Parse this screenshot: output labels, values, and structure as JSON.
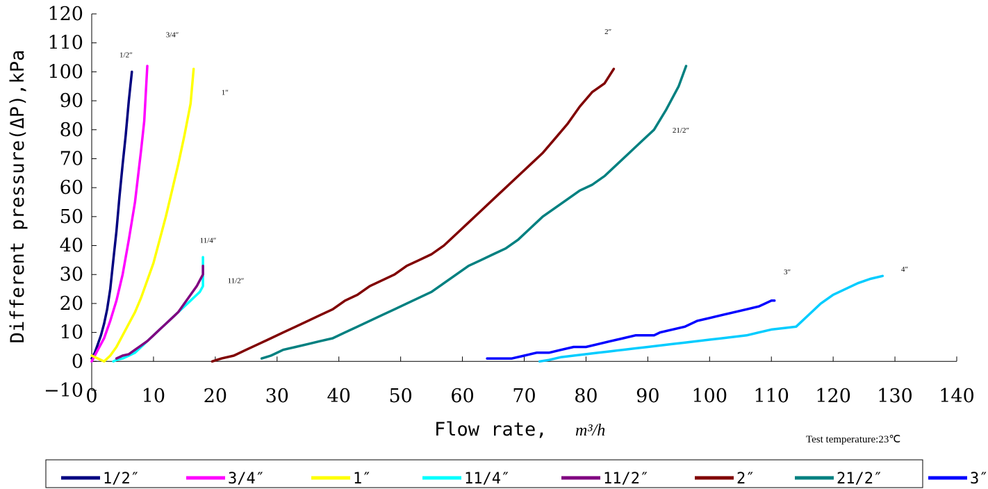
{
  "chart_data": {
    "type": "line",
    "title": "",
    "xlabel": "Flow rate,",
    "xlabel_unit": "m³/h",
    "ylabel": "Different pressure(ΔP),kPa",
    "xlim": [
      0,
      140
    ],
    "ylim": [
      -10,
      120
    ],
    "x_ticks": [
      "0",
      "10",
      "20",
      "30",
      "40",
      "50",
      "60",
      "70",
      "80",
      "90",
      "100",
      "110",
      "120",
      "130",
      "140"
    ],
    "y_ticks": [
      "120",
      "110",
      "100",
      "90",
      "80",
      "70",
      "60",
      "50",
      "40",
      "30",
      "20",
      "10",
      "0",
      "−10"
    ],
    "grid": false,
    "legend_position": "bottom",
    "note": "Test temperature:23℃",
    "annotations": [
      {
        "text": "1/2″",
        "x": 4.5,
        "y": 105
      },
      {
        "text": "3/4″",
        "x": 12,
        "y": 112
      },
      {
        "text": "1″",
        "x": 21,
        "y": 92
      },
      {
        "text": "11/4″",
        "x": 17.5,
        "y": 41
      },
      {
        "text": "11/2″",
        "x": 22,
        "y": 27
      },
      {
        "text": "2″",
        "x": 83,
        "y": 113
      },
      {
        "text": "21/2″",
        "x": 94,
        "y": 79
      },
      {
        "text": "3″",
        "x": 112,
        "y": 30
      },
      {
        "text": "4″",
        "x": 131,
        "y": 31
      }
    ],
    "series": [
      {
        "name": "1/2″",
        "color": "#000080",
        "x": [
          0,
          0.5,
          1,
          1.5,
          2,
          2.5,
          3,
          3.5,
          4,
          4.5,
          5,
          5.5,
          6,
          6.5
        ],
        "y": [
          1,
          3,
          6,
          9,
          13,
          18,
          25,
          35,
          45,
          57,
          68,
          78,
          90,
          100
        ]
      },
      {
        "name": "3/4″",
        "color": "#ff00ff",
        "x": [
          0,
          1,
          2,
          3,
          4,
          5,
          6,
          7,
          7.5,
          8,
          8.5,
          9
        ],
        "y": [
          0,
          4,
          8,
          14,
          21,
          30,
          42,
          55,
          64,
          73,
          83,
          102
        ]
      },
      {
        "name": "1″",
        "color": "#ffff00",
        "x": [
          0,
          1,
          2,
          3,
          4,
          5,
          6,
          7,
          8,
          9,
          10,
          11,
          12,
          13,
          14,
          15,
          16,
          16.5
        ],
        "y": [
          2,
          1,
          0,
          2,
          5,
          9,
          13,
          17,
          22,
          28,
          34,
          42,
          50,
          59,
          68,
          78,
          89,
          101
        ]
      },
      {
        "name": "11/4″",
        "color": "#00ffff",
        "x": [
          3.5,
          4,
          5,
          6,
          7,
          8,
          9,
          10,
          11,
          12,
          13,
          14,
          15,
          16,
          17,
          17.5,
          18,
          18
        ],
        "y": [
          0,
          0.5,
          1,
          2,
          3,
          5,
          7,
          9,
          11,
          13,
          15,
          17,
          19,
          21,
          23,
          24,
          26,
          36
        ]
      },
      {
        "name": "11/2″",
        "color": "#800080",
        "x": [
          4,
          5,
          6,
          7,
          8,
          9,
          10,
          11,
          12,
          13,
          14,
          15,
          16,
          17,
          17.5,
          18,
          18
        ],
        "y": [
          1,
          2,
          2.5,
          4,
          5.5,
          7,
          9,
          11,
          13,
          15,
          17,
          20,
          23,
          26,
          28,
          30,
          33
        ]
      },
      {
        "name": "2″",
        "color": "#800000",
        "x": [
          19.5,
          21,
          23,
          25,
          27,
          29,
          31,
          33,
          35,
          37,
          39,
          41,
          43,
          45,
          47,
          49,
          51,
          53,
          55,
          57,
          59,
          61,
          63,
          65,
          67,
          69,
          71,
          73,
          75,
          77,
          79,
          81,
          83,
          84.5
        ],
        "y": [
          0,
          1,
          2,
          4,
          6,
          8,
          10,
          12,
          14,
          16,
          18,
          21,
          23,
          26,
          28,
          30,
          33,
          35,
          37,
          40,
          44,
          48,
          52,
          56,
          60,
          64,
          68,
          72,
          77,
          82,
          88,
          93,
          96,
          101
        ]
      },
      {
        "name": "21/2″",
        "color": "#008080",
        "x": [
          27.5,
          29,
          31,
          33,
          35,
          37,
          39,
          41,
          43,
          45,
          47,
          49,
          51,
          53,
          55,
          57,
          59,
          61,
          63,
          65,
          67,
          69,
          71,
          73,
          75,
          77,
          79,
          81,
          83,
          85,
          87,
          89,
          91,
          93,
          95,
          96.2
        ],
        "y": [
          1,
          2,
          4,
          5,
          6,
          7,
          8,
          10,
          12,
          14,
          16,
          18,
          20,
          22,
          24,
          27,
          30,
          33,
          35,
          37,
          39,
          42,
          46,
          50,
          53,
          56,
          59,
          61,
          64,
          68,
          72,
          76,
          80,
          87,
          95,
          102
        ]
      },
      {
        "name": "3″",
        "color": "#0000ff",
        "x": [
          64,
          66,
          68,
          70,
          72,
          74,
          76,
          78,
          80,
          82,
          84,
          86,
          88,
          90,
          91,
          92,
          94,
          96,
          98,
          100,
          102,
          104,
          106,
          108,
          110,
          110.5
        ],
        "y": [
          1,
          1,
          1,
          2,
          3,
          3,
          4,
          5,
          5,
          6,
          7,
          8,
          9,
          9,
          9,
          10,
          11,
          12,
          14,
          15,
          16,
          17,
          18,
          19,
          21,
          21
        ]
      },
      {
        "name": "4″",
        "color": "#00ccff",
        "x": [
          72.5,
          74,
          76,
          78,
          80,
          82,
          84,
          86,
          88,
          90,
          92,
          94,
          96,
          98,
          100,
          102,
          104,
          106,
          108,
          110,
          112,
          114,
          116,
          118,
          120,
          122,
          124,
          126,
          128
        ],
        "y": [
          0,
          0.5,
          1.5,
          2,
          2.5,
          3,
          3.5,
          4,
          4.5,
          5,
          5.5,
          6,
          6.5,
          7,
          7.5,
          8,
          8.5,
          9,
          10,
          11,
          11.5,
          12,
          16,
          20,
          23,
          25,
          27,
          28.5,
          29.5
        ]
      }
    ]
  }
}
